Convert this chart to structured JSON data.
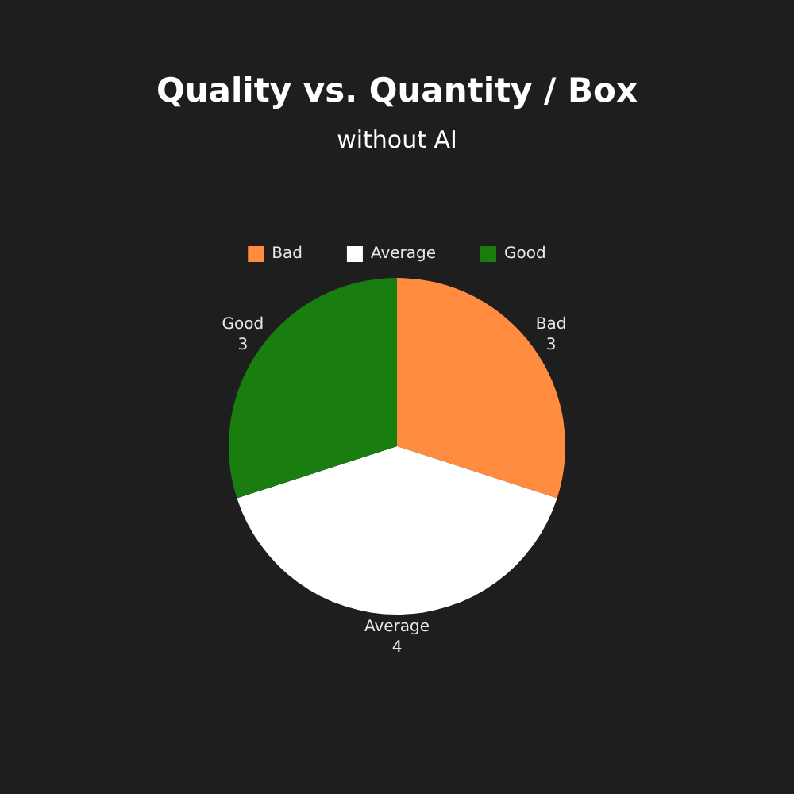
{
  "chart_data": {
    "type": "pie",
    "title": "Quality vs. Quantity / Box",
    "subtitle": "without AI",
    "categories": [
      "Bad",
      "Average",
      "Good"
    ],
    "values": [
      3,
      4,
      3
    ],
    "colors": [
      "#ff8c3f",
      "#ffffff",
      "#1a7d10"
    ],
    "legend": "top",
    "data_labels": true
  }
}
